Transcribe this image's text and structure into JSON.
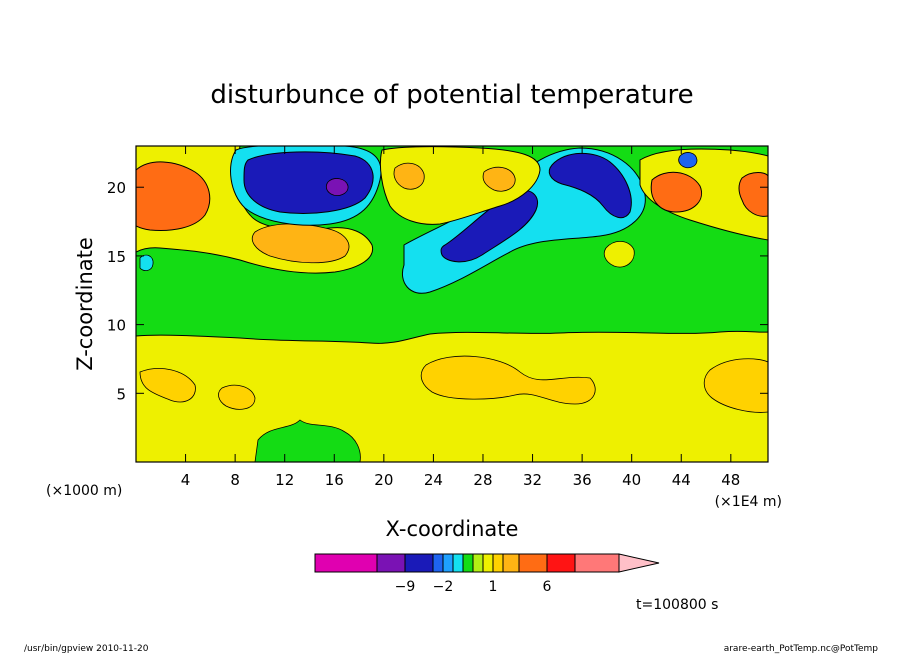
{
  "chart_data": {
    "type": "heatmap",
    "title": "disturbunce of potential temperature",
    "xlabel": "X-coordinate",
    "ylabel": "Z-coordinate",
    "x_unit": "(×1000 m)",
    "x_scale_note": "(×1E4 m)",
    "xlim": [
      0,
      51
    ],
    "ylim": [
      0,
      23
    ],
    "x_ticks": [
      4,
      8,
      12,
      16,
      20,
      24,
      28,
      32,
      36,
      40,
      44,
      48
    ],
    "y_ticks": [
      5,
      10,
      15,
      20
    ],
    "colorbar": {
      "bins": [
        {
          "color": "#e000b0"
        },
        {
          "color": "#7a12b4"
        },
        {
          "color": "#1a1ab8"
        },
        {
          "color": "#1e64f0"
        },
        {
          "color": "#1ea0ff"
        },
        {
          "color": "#14e0f0"
        },
        {
          "color": "#14dc14"
        },
        {
          "color": "#b4f014"
        },
        {
          "color": "#eef000"
        },
        {
          "color": "#ffd200"
        },
        {
          "color": "#ffb414"
        },
        {
          "color": "#ff6c14"
        },
        {
          "color": "#ff1414"
        },
        {
          "color": "#ff7878"
        },
        {
          "color": "#ffc0c8"
        }
      ],
      "labels": [
        "−9",
        "−2",
        "1",
        "6"
      ]
    },
    "regions": [
      {
        "name": "lower-yellow-layer",
        "color": "#eef000"
      },
      {
        "name": "middle-green-layer",
        "color": "#14dc14"
      },
      {
        "name": "upper-left-orange",
        "color": "#ff6c14"
      },
      {
        "name": "upper-blue-anomaly",
        "color": "#1a1ab8"
      },
      {
        "name": "upper-cyan-anomaly",
        "color": "#14e0f0"
      },
      {
        "name": "upper-right-orange",
        "color": "#ff6c14"
      }
    ]
  },
  "annotations": {
    "time": "t=100800 s",
    "footer_left": "/usr/bin/gpview   2010-11-20",
    "footer_right": "arare-earth_PotTemp.nc@PotTemp"
  }
}
